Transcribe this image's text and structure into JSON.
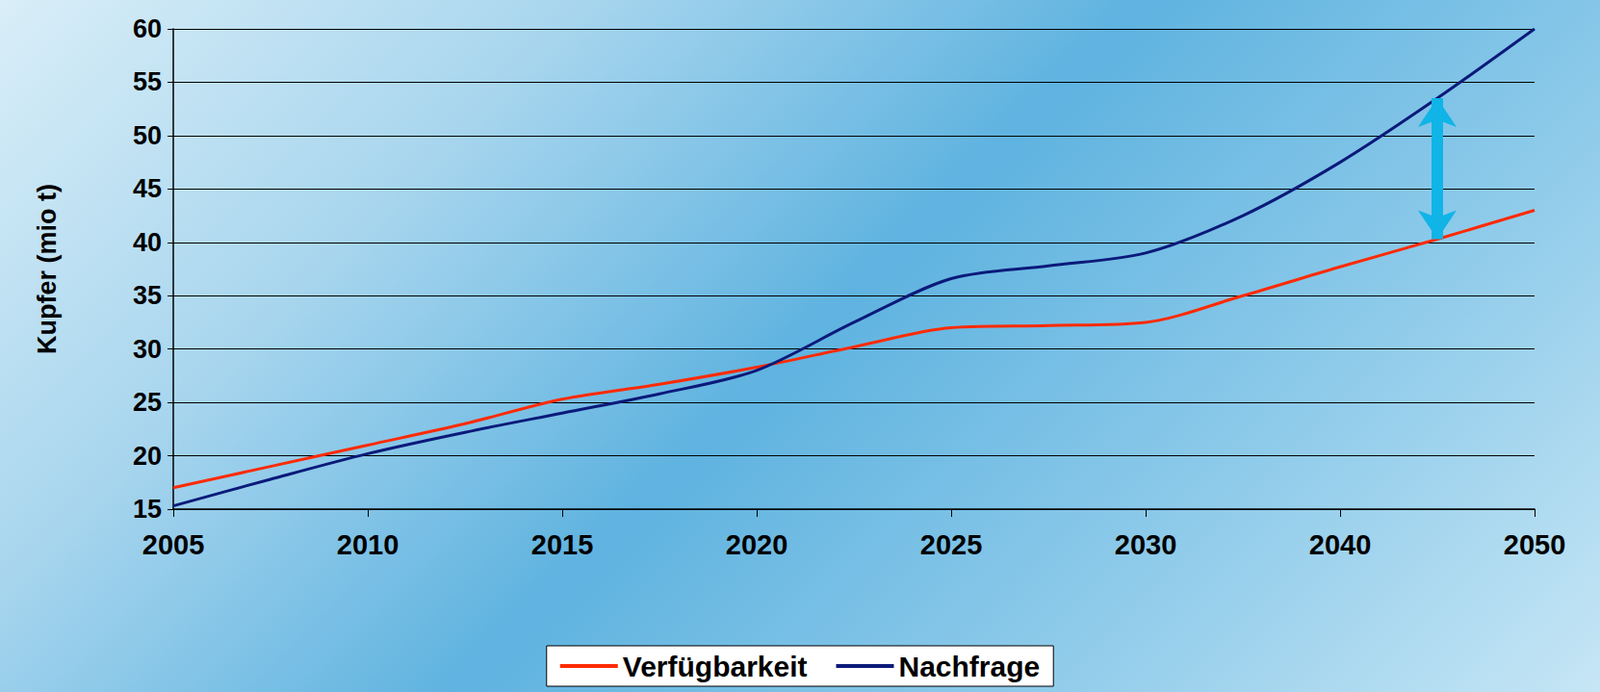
{
  "chart_data": {
    "type": "line",
    "y_label": "Kupfer (mio t)",
    "categories": [
      "2005",
      null,
      "2010",
      null,
      "2015",
      null,
      "2020",
      null,
      "2025",
      null,
      "2030",
      null,
      "2040",
      null,
      "2050"
    ],
    "series": [
      {
        "name": "Verfügbarkeit",
        "color": "#ff2a00",
        "values": [
          17,
          19,
          21,
          23,
          25.3,
          26.7,
          28.3,
          30.2,
          32,
          32.2,
          32.5,
          35,
          37.7,
          40.3,
          43
        ]
      },
      {
        "name": "Nachfrage",
        "color": "#0b1a7a",
        "values": [
          15.3,
          17.8,
          20.2,
          22.2,
          24,
          25.8,
          28,
          32.5,
          36.6,
          37.8,
          39,
          42.5,
          47.5,
          53.5,
          60
        ]
      }
    ],
    "ylim": [
      15,
      60
    ],
    "yticks": [
      15,
      20,
      25,
      30,
      35,
      40,
      45,
      50,
      55,
      60
    ],
    "grid": true,
    "legend": "bottom"
  }
}
